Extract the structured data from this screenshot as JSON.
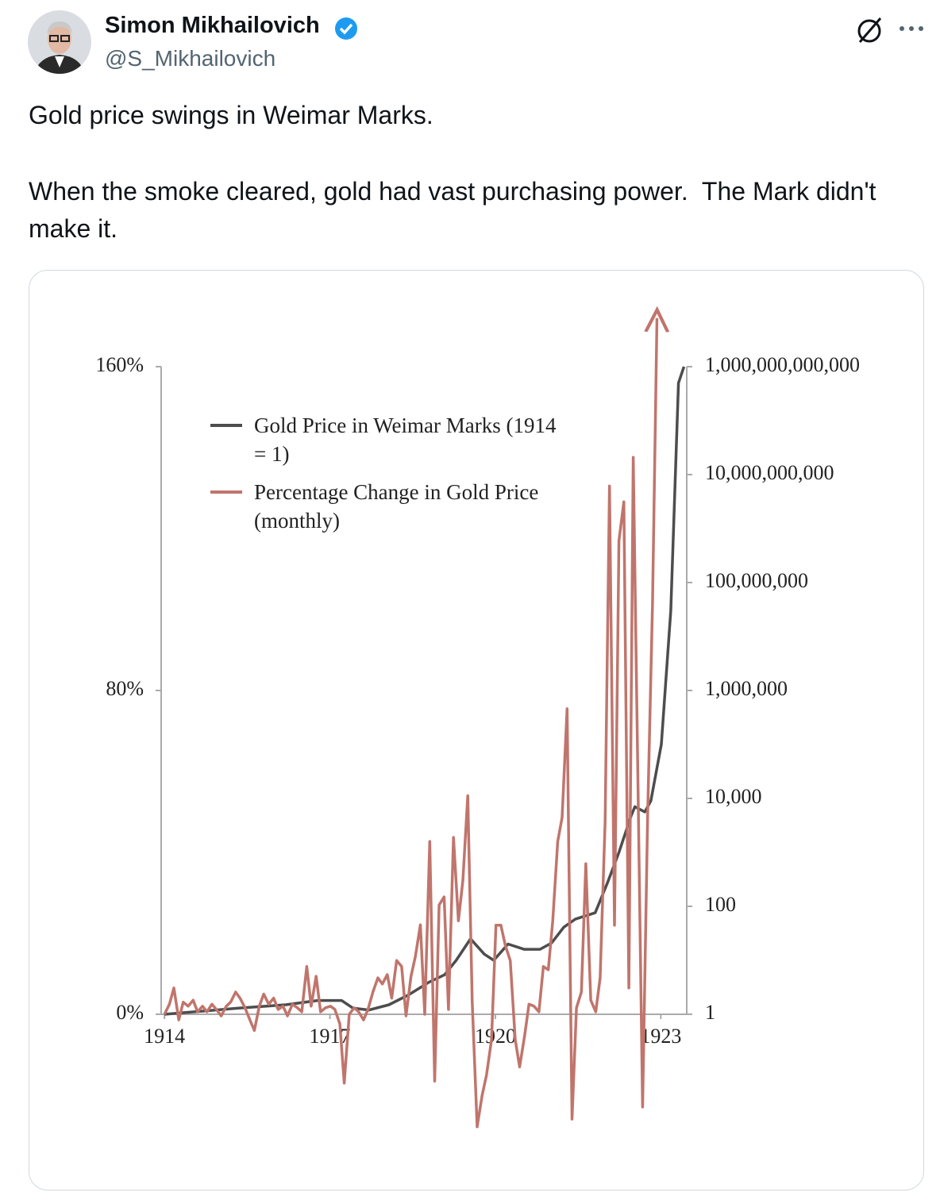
{
  "tweet": {
    "author": {
      "name": "Simon Mikhailovich",
      "handle": "@S_Mikhailovich"
    },
    "text": [
      "Gold price swings in Weimar Marks.",
      "When the smoke cleared, gold had vast purchasing power.  The Mark didn't make it."
    ]
  },
  "chart_data": {
    "type": "line",
    "legend": "upper left",
    "y2scale": "log",
    "xlim": [
      1913.94,
      1923.47
    ],
    "xticks": [
      1914,
      1917,
      1920,
      1923
    ],
    "ylim": [
      0,
      160
    ],
    "yticks": [
      {
        "value": 0,
        "label": "0%"
      },
      {
        "value": 80,
        "label": "80%"
      },
      {
        "value": 160,
        "label": "160%"
      }
    ],
    "y2lim": [
      1,
      1000000000000
    ],
    "y2ticks": [
      1,
      100,
      {
        "value": 10000,
        "label": "10,000"
      },
      {
        "value": 1000000,
        "label": "1,000,000"
      },
      {
        "value": 100000000,
        "label": "100,000,000"
      },
      {
        "value": 10000000000,
        "label": "10,000,000,000"
      },
      {
        "value": 1000000000000,
        "label": "1,000,000,000,000"
      }
    ],
    "series": [
      {
        "name": "Gold Price in Weimar Marks (1914 = 1)",
        "color": "#4d4d4d",
        "axis": "y2",
        "x": [
          1914.0,
          1915.34,
          1916.2,
          1916.78,
          1917.21,
          1917.42,
          1917.71,
          1918.07,
          1918.43,
          1918.79,
          1919.08,
          1919.29,
          1919.55,
          1919.8,
          1919.97,
          1920.23,
          1920.52,
          1920.81,
          1921.02,
          1921.24,
          1921.45,
          1921.81,
          1922.03,
          1922.24,
          1922.46,
          1922.53,
          1922.71,
          1922.82,
          1923.01,
          1923.18,
          1923.32,
          1923.42
        ],
        "values": [
          1,
          1.3,
          1.5,
          1.8,
          1.8,
          1.3,
          1.2,
          1.5,
          2.3,
          3.9,
          5.4,
          10,
          25,
          13,
          10,
          20,
          16,
          16,
          21,
          41,
          58,
          76,
          270,
          1000,
          4700,
          7000,
          5600,
          9000,
          100000,
          30000000,
          500000000000,
          1000000000000
        ]
      },
      {
        "name": "Percentage Change in Gold Price (monthly)",
        "color": "#c0756c",
        "axis": "y",
        "end_arrow": true,
        "x": [
          1914.0,
          1914.09,
          1914.17,
          1914.26,
          1914.34,
          1914.43,
          1914.52,
          1914.6,
          1914.69,
          1914.77,
          1914.86,
          1914.94,
          1915.03,
          1915.12,
          1915.2,
          1915.29,
          1915.37,
          1915.46,
          1915.55,
          1915.63,
          1915.72,
          1915.8,
          1915.89,
          1915.98,
          1916.06,
          1916.15,
          1916.23,
          1916.32,
          1916.41,
          1916.49,
          1916.58,
          1916.66,
          1916.75,
          1916.83,
          1916.92,
          1917.01,
          1917.09,
          1917.18,
          1917.26,
          1917.35,
          1917.44,
          1917.52,
          1917.61,
          1917.69,
          1917.78,
          1917.87,
          1917.95,
          1918.04,
          1918.12,
          1918.21,
          1918.3,
          1918.38,
          1918.47,
          1918.55,
          1918.64,
          1918.72,
          1918.81,
          1918.9,
          1918.98,
          1919.07,
          1919.15,
          1919.24,
          1919.33,
          1919.41,
          1919.5,
          1919.58,
          1919.67,
          1919.76,
          1919.84,
          1919.93,
          1920.01,
          1920.1,
          1920.18,
          1920.27,
          1920.36,
          1920.44,
          1920.53,
          1920.61,
          1920.7,
          1920.79,
          1920.87,
          1920.96,
          1921.04,
          1921.13,
          1921.21,
          1921.3,
          1921.39,
          1921.47,
          1921.56,
          1921.64,
          1921.73,
          1921.82,
          1921.9,
          1921.99,
          1922.07,
          1922.16,
          1922.24,
          1922.33,
          1922.42,
          1922.5,
          1922.59,
          1922.67,
          1922.76,
          1922.85,
          1922.93
        ],
        "values": [
          0,
          2.5,
          6.5,
          -1.4,
          3,
          2,
          3.5,
          0.6,
          2,
          0.6,
          2.5,
          1.2,
          -0.4,
          2,
          3,
          5.5,
          4,
          1.6,
          -1.4,
          -4,
          2,
          5,
          2.5,
          4,
          1.2,
          2,
          -0.4,
          2.5,
          1.6,
          0.6,
          11.8,
          2,
          9.4,
          0.6,
          1.6,
          2,
          1.2,
          -2.4,
          -17,
          0,
          1.6,
          0.6,
          -1.4,
          1.2,
          5.5,
          9,
          7.5,
          9.8,
          4,
          13.3,
          11.8,
          -0.4,
          9.4,
          14.3,
          22.1,
          0,
          42.7,
          -16.5,
          27,
          29,
          1.2,
          43.7,
          23.1,
          33,
          54,
          3,
          -27.8,
          -20,
          -15,
          -6.3,
          22,
          22,
          17,
          13.3,
          -6.3,
          -13,
          -5.3,
          2.5,
          2,
          0.6,
          11.8,
          11,
          23,
          42.7,
          48.6,
          75.5,
          -25.9,
          1.6,
          5.5,
          37.2,
          3.5,
          0.6,
          9,
          47.6,
          130.5,
          22,
          117,
          126.6,
          6.5,
          137.6,
          52.5,
          -22.9,
          48.6,
          101.5,
          172
        ]
      }
    ]
  }
}
